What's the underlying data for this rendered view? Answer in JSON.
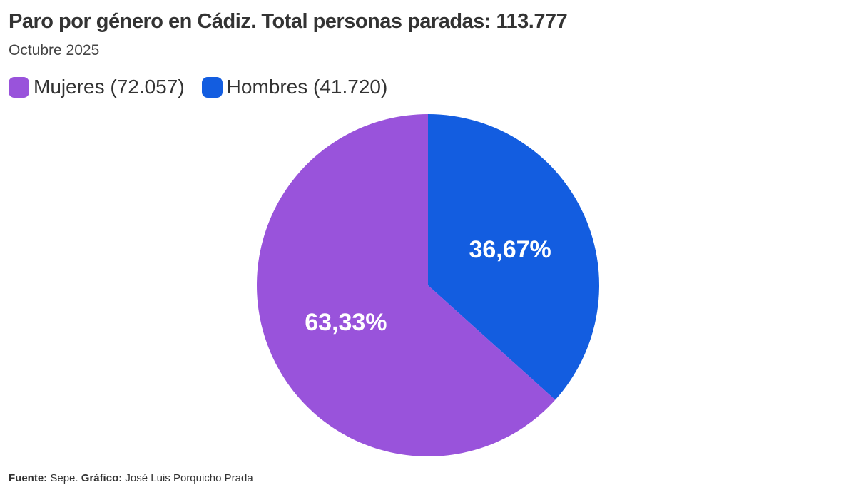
{
  "chart_data": {
    "type": "pie",
    "title": "Paro por género en Cádiz. Total personas paradas: 113.777",
    "subtitle": "Octubre 2025",
    "legend_position": "top-left",
    "slices": [
      {
        "name": "Hombres",
        "legend": "Hombres (41.720)",
        "value": 41720,
        "percent_label": "36,67%",
        "color": "#135DE0"
      },
      {
        "name": "Mujeres",
        "legend": "Mujeres (72.057)",
        "value": 72057,
        "percent_label": "63,33%",
        "color": "#9953DB"
      }
    ],
    "legend_order": [
      1,
      0
    ]
  },
  "footer": {
    "source_label": "Fuente:",
    "source": "Sepe.",
    "chart_label": "Gráfico:",
    "author": "José Luis Porquicho Prada"
  }
}
